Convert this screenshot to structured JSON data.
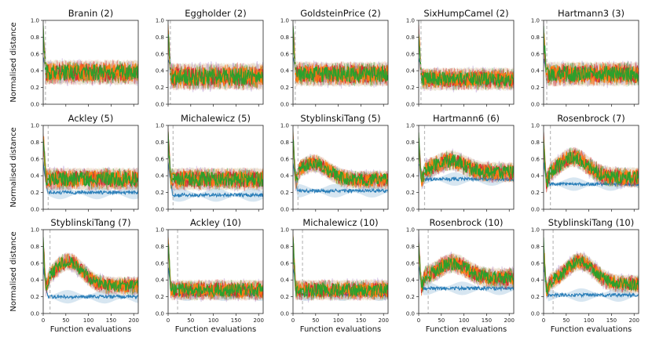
{
  "figure": {
    "ylabel": "Normalised distance",
    "xlabel": "Function evaluations"
  },
  "colors": {
    "blue": "#1f77b4",
    "orange": "#ff7f0e",
    "green": "#2ca02c",
    "red": "#d62728",
    "purple": "#9467bd",
    "marker": "#bbbbbb"
  },
  "chart_data": [
    {
      "type": "line",
      "title": "Branin (2)",
      "xlim": [
        0,
        210
      ],
      "ylim": [
        0,
        1.0
      ],
      "xticks": [
        0,
        50,
        100,
        150,
        200
      ],
      "yticks": [
        0.0,
        0.2,
        0.4,
        0.6,
        0.8,
        1.0
      ],
      "init_marker_x": 5,
      "shape": "flat",
      "level": 0.38,
      "spread": 0.12,
      "blue_level": 0.36
    },
    {
      "type": "line",
      "title": "Eggholder (2)",
      "xlim": [
        0,
        210
      ],
      "ylim": [
        0,
        1.0
      ],
      "xticks": [
        0,
        50,
        100,
        150,
        200
      ],
      "yticks": [
        0.0,
        0.2,
        0.4,
        0.6,
        0.8,
        1.0
      ],
      "init_marker_x": 5,
      "shape": "flat",
      "level": 0.33,
      "spread": 0.13,
      "blue_level": 0.3
    },
    {
      "type": "line",
      "title": "GoldsteinPrice (2)",
      "xlim": [
        0,
        210
      ],
      "ylim": [
        0,
        1.0
      ],
      "xticks": [
        0,
        50,
        100,
        150,
        200
      ],
      "yticks": [
        0.0,
        0.2,
        0.4,
        0.6,
        0.8,
        1.0
      ],
      "init_marker_x": 5,
      "shape": "flat",
      "level": 0.36,
      "spread": 0.12,
      "blue_level": 0.34
    },
    {
      "type": "line",
      "title": "SixHumpCamel (2)",
      "xlim": [
        0,
        210
      ],
      "ylim": [
        0,
        1.0
      ],
      "xticks": [
        0,
        50,
        100,
        150,
        200
      ],
      "yticks": [
        0.0,
        0.2,
        0.4,
        0.6,
        0.8,
        1.0
      ],
      "init_marker_x": 5,
      "shape": "flat",
      "level": 0.3,
      "spread": 0.11,
      "blue_level": 0.28
    },
    {
      "type": "line",
      "title": "Hartmann3 (3)",
      "xlim": [
        0,
        210
      ],
      "ylim": [
        0,
        1.0
      ],
      "xticks": [
        0,
        50,
        100,
        150,
        200
      ],
      "yticks": [
        0.0,
        0.2,
        0.4,
        0.6,
        0.8,
        1.0
      ],
      "init_marker_x": 7,
      "shape": "flat",
      "level": 0.36,
      "spread": 0.12,
      "blue_level": 0.34
    },
    {
      "type": "line",
      "title": "Ackley (5)",
      "xlim": [
        0,
        210
      ],
      "ylim": [
        0,
        1.0
      ],
      "xticks": [
        0,
        50,
        100,
        150,
        200
      ],
      "yticks": [
        0.0,
        0.2,
        0.4,
        0.6,
        0.8,
        1.0
      ],
      "init_marker_x": 11,
      "shape": "flat",
      "level": 0.36,
      "spread": 0.11,
      "blue_level": 0.2
    },
    {
      "type": "line",
      "title": "Michalewicz (5)",
      "xlim": [
        0,
        210
      ],
      "ylim": [
        0,
        1.0
      ],
      "xticks": [
        0,
        50,
        100,
        150,
        200
      ],
      "yticks": [
        0.0,
        0.2,
        0.4,
        0.6,
        0.8,
        1.0
      ],
      "init_marker_x": 11,
      "shape": "flat",
      "level": 0.36,
      "spread": 0.11,
      "blue_level": 0.17
    },
    {
      "type": "line",
      "title": "StyblinskiTang (5)",
      "xlim": [
        0,
        210
      ],
      "ylim": [
        0,
        1.0
      ],
      "xticks": [
        0,
        50,
        100,
        150,
        200
      ],
      "yticks": [
        0.0,
        0.2,
        0.4,
        0.6,
        0.8,
        1.0
      ],
      "init_marker_x": 11,
      "shape": "hump",
      "level": 0.35,
      "peak": 0.55,
      "peak_x": 45,
      "spread": 0.09,
      "blue_level": 0.22
    },
    {
      "type": "line",
      "title": "Hartmann6 (6)",
      "xlim": [
        0,
        210
      ],
      "ylim": [
        0,
        1.0
      ],
      "xticks": [
        0,
        50,
        100,
        150,
        200
      ],
      "yticks": [
        0.0,
        0.2,
        0.4,
        0.6,
        0.8,
        1.0
      ],
      "init_marker_x": 13,
      "shape": "hump",
      "level": 0.44,
      "peak": 0.58,
      "peak_x": 70,
      "spread": 0.1,
      "blue_level": 0.36
    },
    {
      "type": "line",
      "title": "Rosenbrock (7)",
      "xlim": [
        0,
        210
      ],
      "ylim": [
        0,
        1.0
      ],
      "xticks": [
        0,
        50,
        100,
        150,
        200
      ],
      "yticks": [
        0.0,
        0.2,
        0.4,
        0.6,
        0.8,
        1.0
      ],
      "init_marker_x": 15,
      "shape": "hump",
      "level": 0.38,
      "peak": 0.62,
      "peak_x": 65,
      "spread": 0.1,
      "blue_level": 0.3
    },
    {
      "type": "line",
      "title": "StyblinskiTang (7)",
      "xlim": [
        0,
        210
      ],
      "ylim": [
        0,
        1.0
      ],
      "xticks": [
        0,
        50,
        100,
        150,
        200
      ],
      "yticks": [
        0.0,
        0.2,
        0.4,
        0.6,
        0.8,
        1.0
      ],
      "init_marker_x": 15,
      "shape": "hump",
      "level": 0.33,
      "peak": 0.62,
      "peak_x": 55,
      "spread": 0.09,
      "blue_level": 0.2
    },
    {
      "type": "line",
      "title": "Ackley (10)",
      "xlim": [
        0,
        210
      ],
      "ylim": [
        0,
        1.0
      ],
      "xticks": [
        0,
        50,
        100,
        150,
        200
      ],
      "yticks": [
        0.0,
        0.2,
        0.4,
        0.6,
        0.8,
        1.0
      ],
      "init_marker_x": 21,
      "shape": "flat",
      "level": 0.28,
      "spread": 0.1,
      "blue_level": 0.23
    },
    {
      "type": "line",
      "title": "Michalewicz (10)",
      "xlim": [
        0,
        210
      ],
      "ylim": [
        0,
        1.0
      ],
      "xticks": [
        0,
        50,
        100,
        150,
        200
      ],
      "yticks": [
        0.0,
        0.2,
        0.4,
        0.6,
        0.8,
        1.0
      ],
      "init_marker_x": 21,
      "shape": "flat",
      "level": 0.28,
      "spread": 0.1,
      "blue_level": 0.23
    },
    {
      "type": "line",
      "title": "Rosenbrock (10)",
      "xlim": [
        0,
        210
      ],
      "ylim": [
        0,
        1.0
      ],
      "xticks": [
        0,
        50,
        100,
        150,
        200
      ],
      "yticks": [
        0.0,
        0.2,
        0.4,
        0.6,
        0.8,
        1.0
      ],
      "init_marker_x": 21,
      "shape": "hump",
      "level": 0.42,
      "peak": 0.6,
      "peak_x": 75,
      "spread": 0.1,
      "blue_level": 0.3
    },
    {
      "type": "line",
      "title": "StyblinskiTang (10)",
      "xlim": [
        0,
        210
      ],
      "ylim": [
        0,
        1.0
      ],
      "xticks": [
        0,
        50,
        100,
        150,
        200
      ],
      "yticks": [
        0.0,
        0.2,
        0.4,
        0.6,
        0.8,
        1.0
      ],
      "init_marker_x": 21,
      "shape": "hump",
      "level": 0.35,
      "peak": 0.62,
      "peak_x": 80,
      "spread": 0.09,
      "blue_level": 0.22
    }
  ]
}
